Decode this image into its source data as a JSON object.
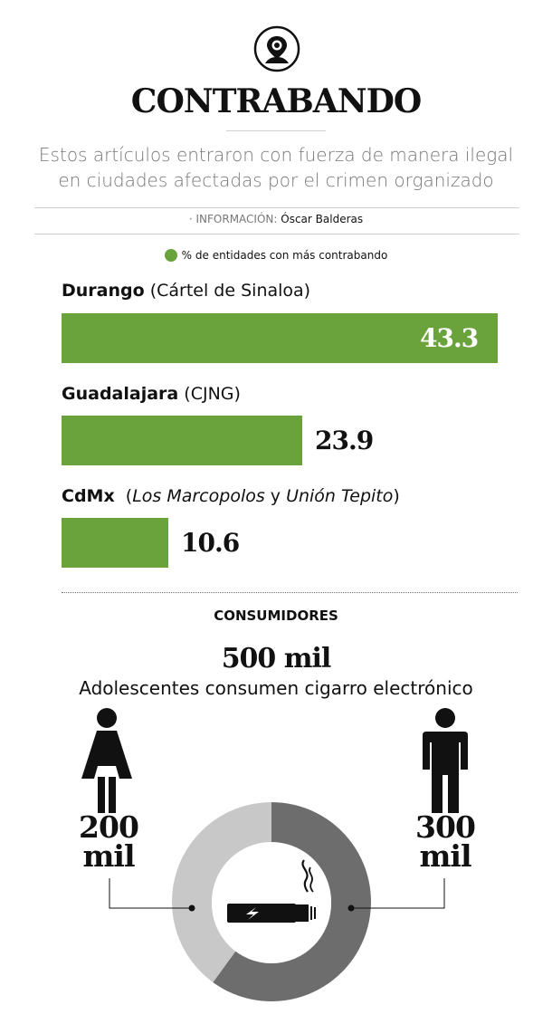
{
  "header": {
    "logo_icon": "location-pin-person-icon",
    "title": "CONTRABANDO",
    "subtitle_line1": "Estos artículos entraron con fuerza de manera ilegal",
    "subtitle_line2": "en ciudades afectadas por el crimen organizado",
    "credit_label": "· INFORMACIÓN: ",
    "credit_name": "Óscar Balderas"
  },
  "legend": {
    "label": "% de entidades con más contrabando",
    "color": "#6aa23b"
  },
  "chart_data": [
    {
      "type": "bar",
      "orientation": "horizontal",
      "legend": "% de entidades con más contrabando",
      "categories": [
        {
          "city": "Durango",
          "group": "(Cártel de Sinaloa)"
        },
        {
          "city": "Guadalajara",
          "group": "(CJNG)"
        },
        {
          "city": "CdMx",
          "group_pre": "(",
          "group_a": "Los Marcopolos",
          "group_mid": " y ",
          "group_b": "Unión Tepito",
          "group_post": ")"
        }
      ],
      "values": [
        43.3,
        23.9,
        10.6
      ],
      "value_labels": [
        "43.3",
        "23.9",
        "10.6"
      ],
      "color": "#6aa23b"
    },
    {
      "type": "pie",
      "title": "CONSUMIDORES",
      "total_label": "500 mil",
      "description": "Adolescentes consumen cigarro electrónico",
      "slices": [
        {
          "label_num": "200",
          "label_unit": "mil",
          "value": 200,
          "group": "female",
          "color": "#c8c8c8"
        },
        {
          "label_num": "300",
          "label_unit": "mil",
          "value": 300,
          "group": "male",
          "color": "#6d6d6d"
        }
      ],
      "center_icon": "e-cigarette-icon"
    }
  ],
  "icons": {
    "female": "woman-icon",
    "male": "man-icon"
  }
}
